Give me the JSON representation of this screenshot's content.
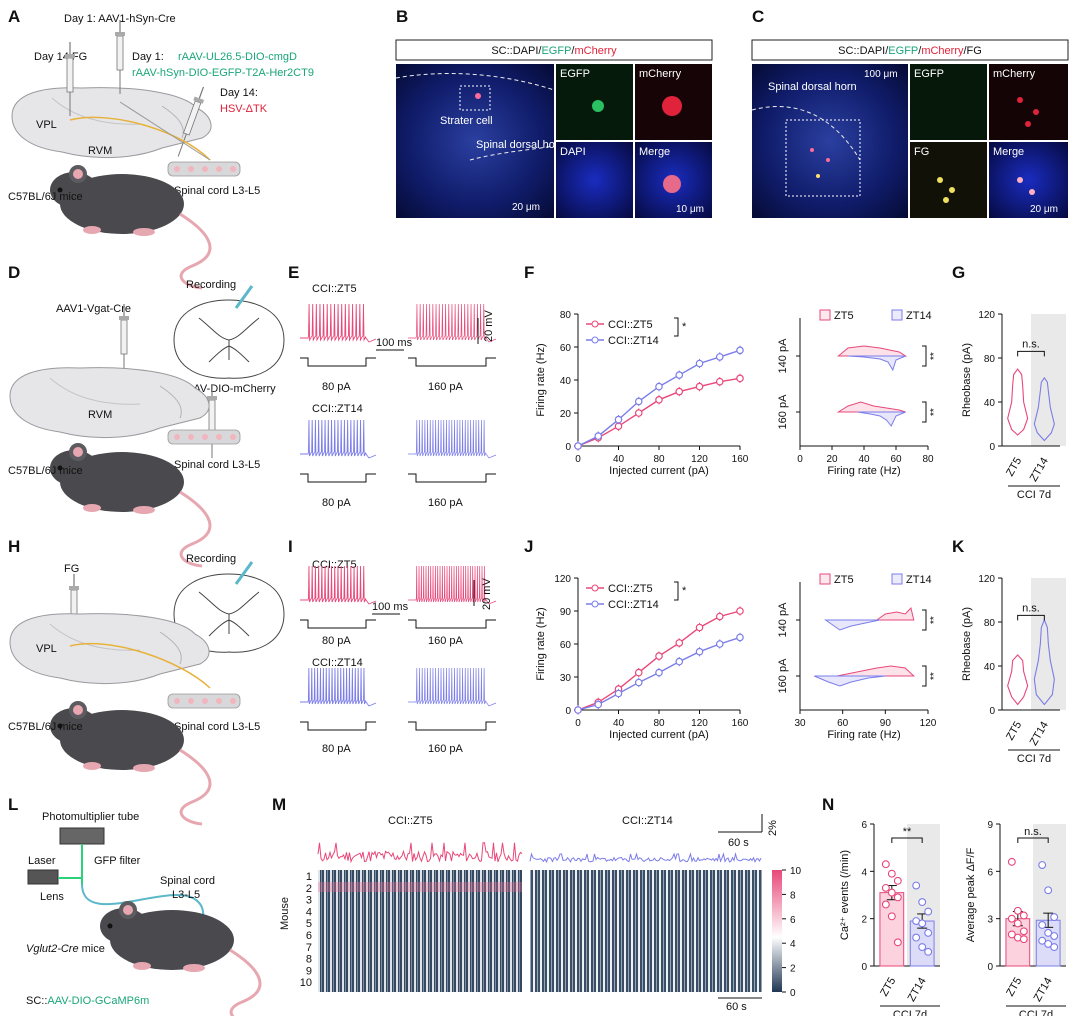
{
  "panels": {
    "a": {
      "letter": "A",
      "day1": "Day 1: AAV1-hSyn-Cre",
      "day14fg": "Day 14:FG",
      "day1b": "Day 1: ",
      "virus1": "rAAV-UL26.5-DIO-cmgD",
      "virus2": "rAAV-hSyn-DIO-EGFP-T2A-Her2CT9",
      "day14": "Day 14:",
      "hsv": "HSV-ΔTK",
      "vpl": "VPL",
      "rvm": "RVM",
      "cord": "Spinal cord L3-L5",
      "mice": "C57BL/6J mice"
    },
    "b": {
      "letter": "B",
      "title_pre": "SC::DAPI/",
      "title_g": "EGFP",
      "title_sep": "/",
      "title_r": "mCherry",
      "starter": "Strater cell",
      "horn": "Spinal dorsal horn",
      "egfp": "EGFP",
      "mcherry": "mCherry",
      "dapi": "DAPI",
      "merge": "Merge",
      "scale1": "20 μm",
      "scale2": "10 μm"
    },
    "c": {
      "letter": "C",
      "title_pre": "SC::DAPI/",
      "title_g": "EGFP",
      "title_sep": "/",
      "title_r": "mCherry",
      "title_post": "/FG",
      "horn": "Spinal dorsal horn",
      "egfp": "EGFP",
      "mcherry": "mCherry",
      "fg": "FG",
      "merge": "Merge",
      "scale1": "100 μm",
      "scale2": "20 μm"
    },
    "d": {
      "letter": "D",
      "virus1": "AAV1-Vgat-Cre",
      "recording": "Recording",
      "virus2": "AAV-DIO-mCherry",
      "rvm": "RVM",
      "cord": "Spinal cord L3-L5",
      "mice": "C57BL/6J mice"
    },
    "e": {
      "letter": "E",
      "zt5": "CCI::ZT5",
      "zt14": "CCI::ZT14",
      "i80": "80 pA",
      "i160": "160 pA",
      "ms": "100 ms",
      "mv": "20 mV"
    },
    "g": {
      "letter": "G"
    },
    "h": {
      "letter": "H",
      "fg": "FG",
      "recording": "Recording",
      "vpl": "VPL",
      "cord": "Spinal cord L3-L5",
      "mice": "C57BL/6J mice"
    },
    "i": {
      "letter": "I",
      "zt5": "CCI::ZT5",
      "zt14": "CCI::ZT14",
      "i80": "80 pA",
      "i160": "160 pA",
      "ms": "100 ms",
      "mv": "20 mV"
    },
    "k": {
      "letter": "K"
    },
    "l": {
      "letter": "L",
      "pmt": "Photomultiplier tube",
      "laser": "Laser",
      "filter": "GFP filter",
      "lens": "Lens",
      "cord1": "Spinal cord",
      "cord2": "L3-L5",
      "mice_i": "Vglut2-Cre",
      "mice": " mice",
      "sc": "SC::",
      "virus": "AAV-DIO-GCaMP6m"
    },
    "m": {
      "letter": "M",
      "zt5": "CCI::ZT5",
      "zt14": "CCI::ZT14",
      "pct": "2%",
      "sec": "60 s",
      "mouse": "Mouse"
    },
    "n": {
      "letter": "N"
    }
  },
  "colors": {
    "zt5": "#e8487a",
    "zt14": "#7b7de8",
    "green": "#1aa57a",
    "red": "#e0223a"
  },
  "chart_data": [
    {
      "id": "F_left",
      "type": "line",
      "xlabel": "Injected current (pA)",
      "ylabel": "Firing rate (Hz)",
      "xlim": [
        0,
        160
      ],
      "ylim": [
        0,
        80
      ],
      "xticks": [
        "0",
        "40",
        "80",
        "120",
        "160"
      ],
      "yticks": [
        "0",
        "20",
        "40",
        "60",
        "80"
      ],
      "x": [
        0,
        20,
        40,
        60,
        80,
        100,
        120,
        140,
        160
      ],
      "series": [
        {
          "name": "CCI::ZT5",
          "values": [
            0,
            5,
            12,
            20,
            28,
            33,
            36,
            39,
            41
          ]
        },
        {
          "name": "CCI::ZT14",
          "values": [
            0,
            6,
            16,
            27,
            36,
            43,
            50,
            54,
            58
          ]
        }
      ],
      "significance": "*"
    },
    {
      "id": "F_right",
      "type": "violin",
      "xlabel": "Firing rate (Hz)",
      "xlim": [
        0,
        80
      ],
      "xticks": [
        "0",
        "20",
        "40",
        "60",
        "80"
      ],
      "rows": [
        "140 pA",
        "160 pA"
      ],
      "legend": [
        "ZT5",
        "ZT14"
      ],
      "significance": [
        "**",
        "**"
      ]
    },
    {
      "id": "G",
      "type": "violin",
      "ylabel": "Rheobase (pA)",
      "ylim": [
        0,
        120
      ],
      "yticks": [
        "0",
        "40",
        "80",
        "120"
      ],
      "categories": [
        "ZT5",
        "ZT14"
      ],
      "group": "CCI 7d",
      "significance": "n.s."
    },
    {
      "id": "J_left",
      "type": "line",
      "xlabel": "Injected current (pA)",
      "ylabel": "Firing rate (Hz)",
      "xlim": [
        0,
        160
      ],
      "ylim": [
        0,
        120
      ],
      "xticks": [
        "0",
        "40",
        "80",
        "120",
        "160"
      ],
      "yticks": [
        "0",
        "30",
        "60",
        "90",
        "120"
      ],
      "x": [
        0,
        20,
        40,
        60,
        80,
        100,
        120,
        140,
        160
      ],
      "series": [
        {
          "name": "CCI::ZT5",
          "values": [
            0,
            7,
            19,
            34,
            49,
            61,
            75,
            85,
            90
          ]
        },
        {
          "name": "CCI::ZT14",
          "values": [
            0,
            5,
            15,
            25,
            34,
            44,
            53,
            60,
            66
          ]
        }
      ],
      "significance": "*"
    },
    {
      "id": "J_right",
      "type": "violin",
      "xlabel": "Firing rate (Hz)",
      "xlim": [
        30,
        120
      ],
      "xticks": [
        "30",
        "60",
        "90",
        "120"
      ],
      "rows": [
        "140 pA",
        "160 pA"
      ],
      "legend": [
        "ZT5",
        "ZT14"
      ],
      "significance": [
        "**",
        "**"
      ]
    },
    {
      "id": "K",
      "type": "violin",
      "ylabel": "Rheobase (pA)",
      "ylim": [
        0,
        120
      ],
      "yticks": [
        "0",
        "40",
        "80",
        "120"
      ],
      "categories": [
        "ZT5",
        "ZT14"
      ],
      "group": "CCI 7d",
      "significance": "n.s."
    },
    {
      "id": "M_heatmap",
      "type": "heatmap",
      "ylabel": "Mouse",
      "rows": [
        "1",
        "2",
        "3",
        "4",
        "5",
        "6",
        "7",
        "8",
        "9",
        "10"
      ],
      "colorbar": [
        "0",
        "2",
        "4",
        "6",
        "8",
        "10"
      ],
      "groups": [
        "CCI::ZT5",
        "CCI::ZT14"
      ]
    },
    {
      "id": "N_left",
      "type": "bar",
      "ylabel": "Ca²⁺ events (/min)",
      "ylim": [
        0,
        6
      ],
      "yticks": [
        "0",
        "2",
        "4",
        "6"
      ],
      "categories": [
        "ZT5",
        "ZT14"
      ],
      "values": [
        3.1,
        1.9
      ],
      "group": "CCI 7d",
      "significance": "**",
      "points": [
        [
          4.3,
          3.9,
          3.6,
          3.3,
          3.1,
          2.9,
          2.6,
          2.1,
          1.0
        ],
        [
          3.4,
          2.7,
          2.3,
          1.9,
          1.8,
          1.4,
          1.2,
          0.8,
          0.6
        ]
      ]
    },
    {
      "id": "N_right",
      "type": "bar",
      "ylabel": "Average peak ΔF/F",
      "ylim": [
        0,
        9
      ],
      "yticks": [
        "0",
        "3",
        "6",
        "9"
      ],
      "categories": [
        "ZT5",
        "ZT14"
      ],
      "values": [
        3.0,
        2.9
      ],
      "group": "CCI 7d",
      "significance": "n.s.",
      "points": [
        [
          6.6,
          3.5,
          3.2,
          3.0,
          2.7,
          2.2,
          2.0,
          1.8,
          1.7
        ],
        [
          6.4,
          4.8,
          3.1,
          2.6,
          2.1,
          1.9,
          1.6,
          1.4,
          1.2
        ]
      ]
    }
  ]
}
